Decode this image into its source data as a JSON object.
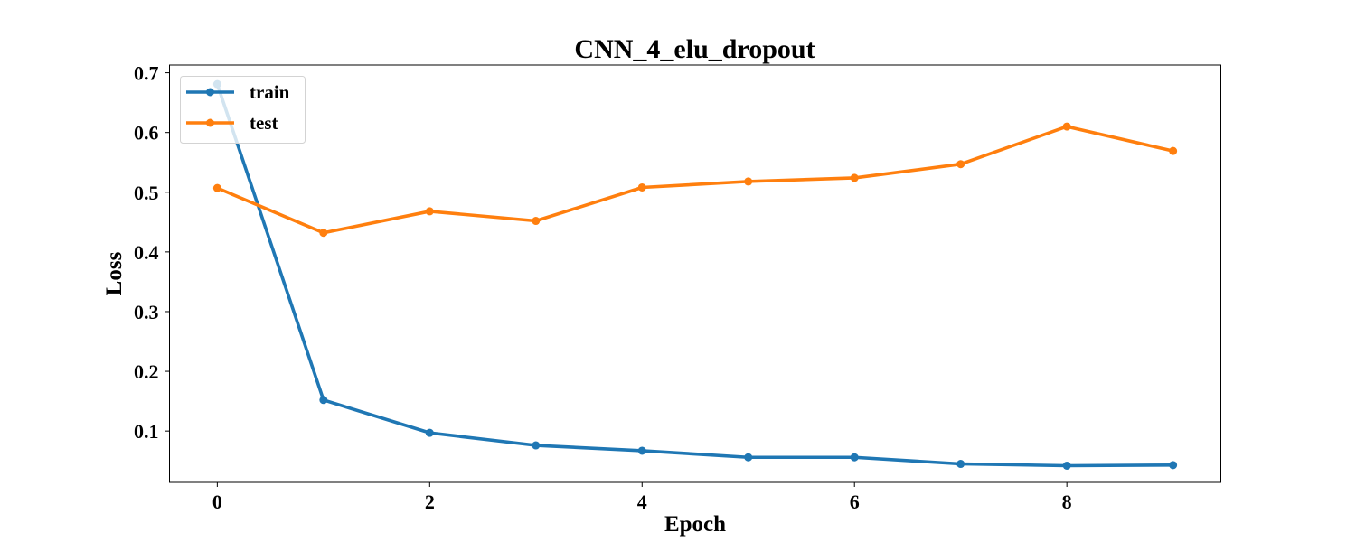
{
  "chart_data": {
    "type": "line",
    "title": "CNN_4_elu_dropout",
    "xlabel": "Epoch",
    "ylabel": "Loss",
    "x": [
      0,
      1,
      2,
      3,
      4,
      5,
      6,
      7,
      8,
      9
    ],
    "xlim": [
      -0.45,
      9.45
    ],
    "ylim": [
      0.014,
      0.713
    ],
    "xticks": [
      0,
      2,
      4,
      6,
      8
    ],
    "yticks": [
      0.1,
      0.2,
      0.3,
      0.4,
      0.5,
      0.6,
      0.7
    ],
    "grid": false,
    "legend_position": "upper-left",
    "series": [
      {
        "name": "train",
        "color": "#1f77b4",
        "values": [
          0.681,
          0.152,
          0.097,
          0.076,
          0.067,
          0.056,
          0.056,
          0.045,
          0.042,
          0.043
        ]
      },
      {
        "name": "test",
        "color": "#ff7f0e",
        "values": [
          0.507,
          0.432,
          0.468,
          0.452,
          0.508,
          0.518,
          0.524,
          0.547,
          0.61,
          0.569
        ]
      }
    ]
  }
}
